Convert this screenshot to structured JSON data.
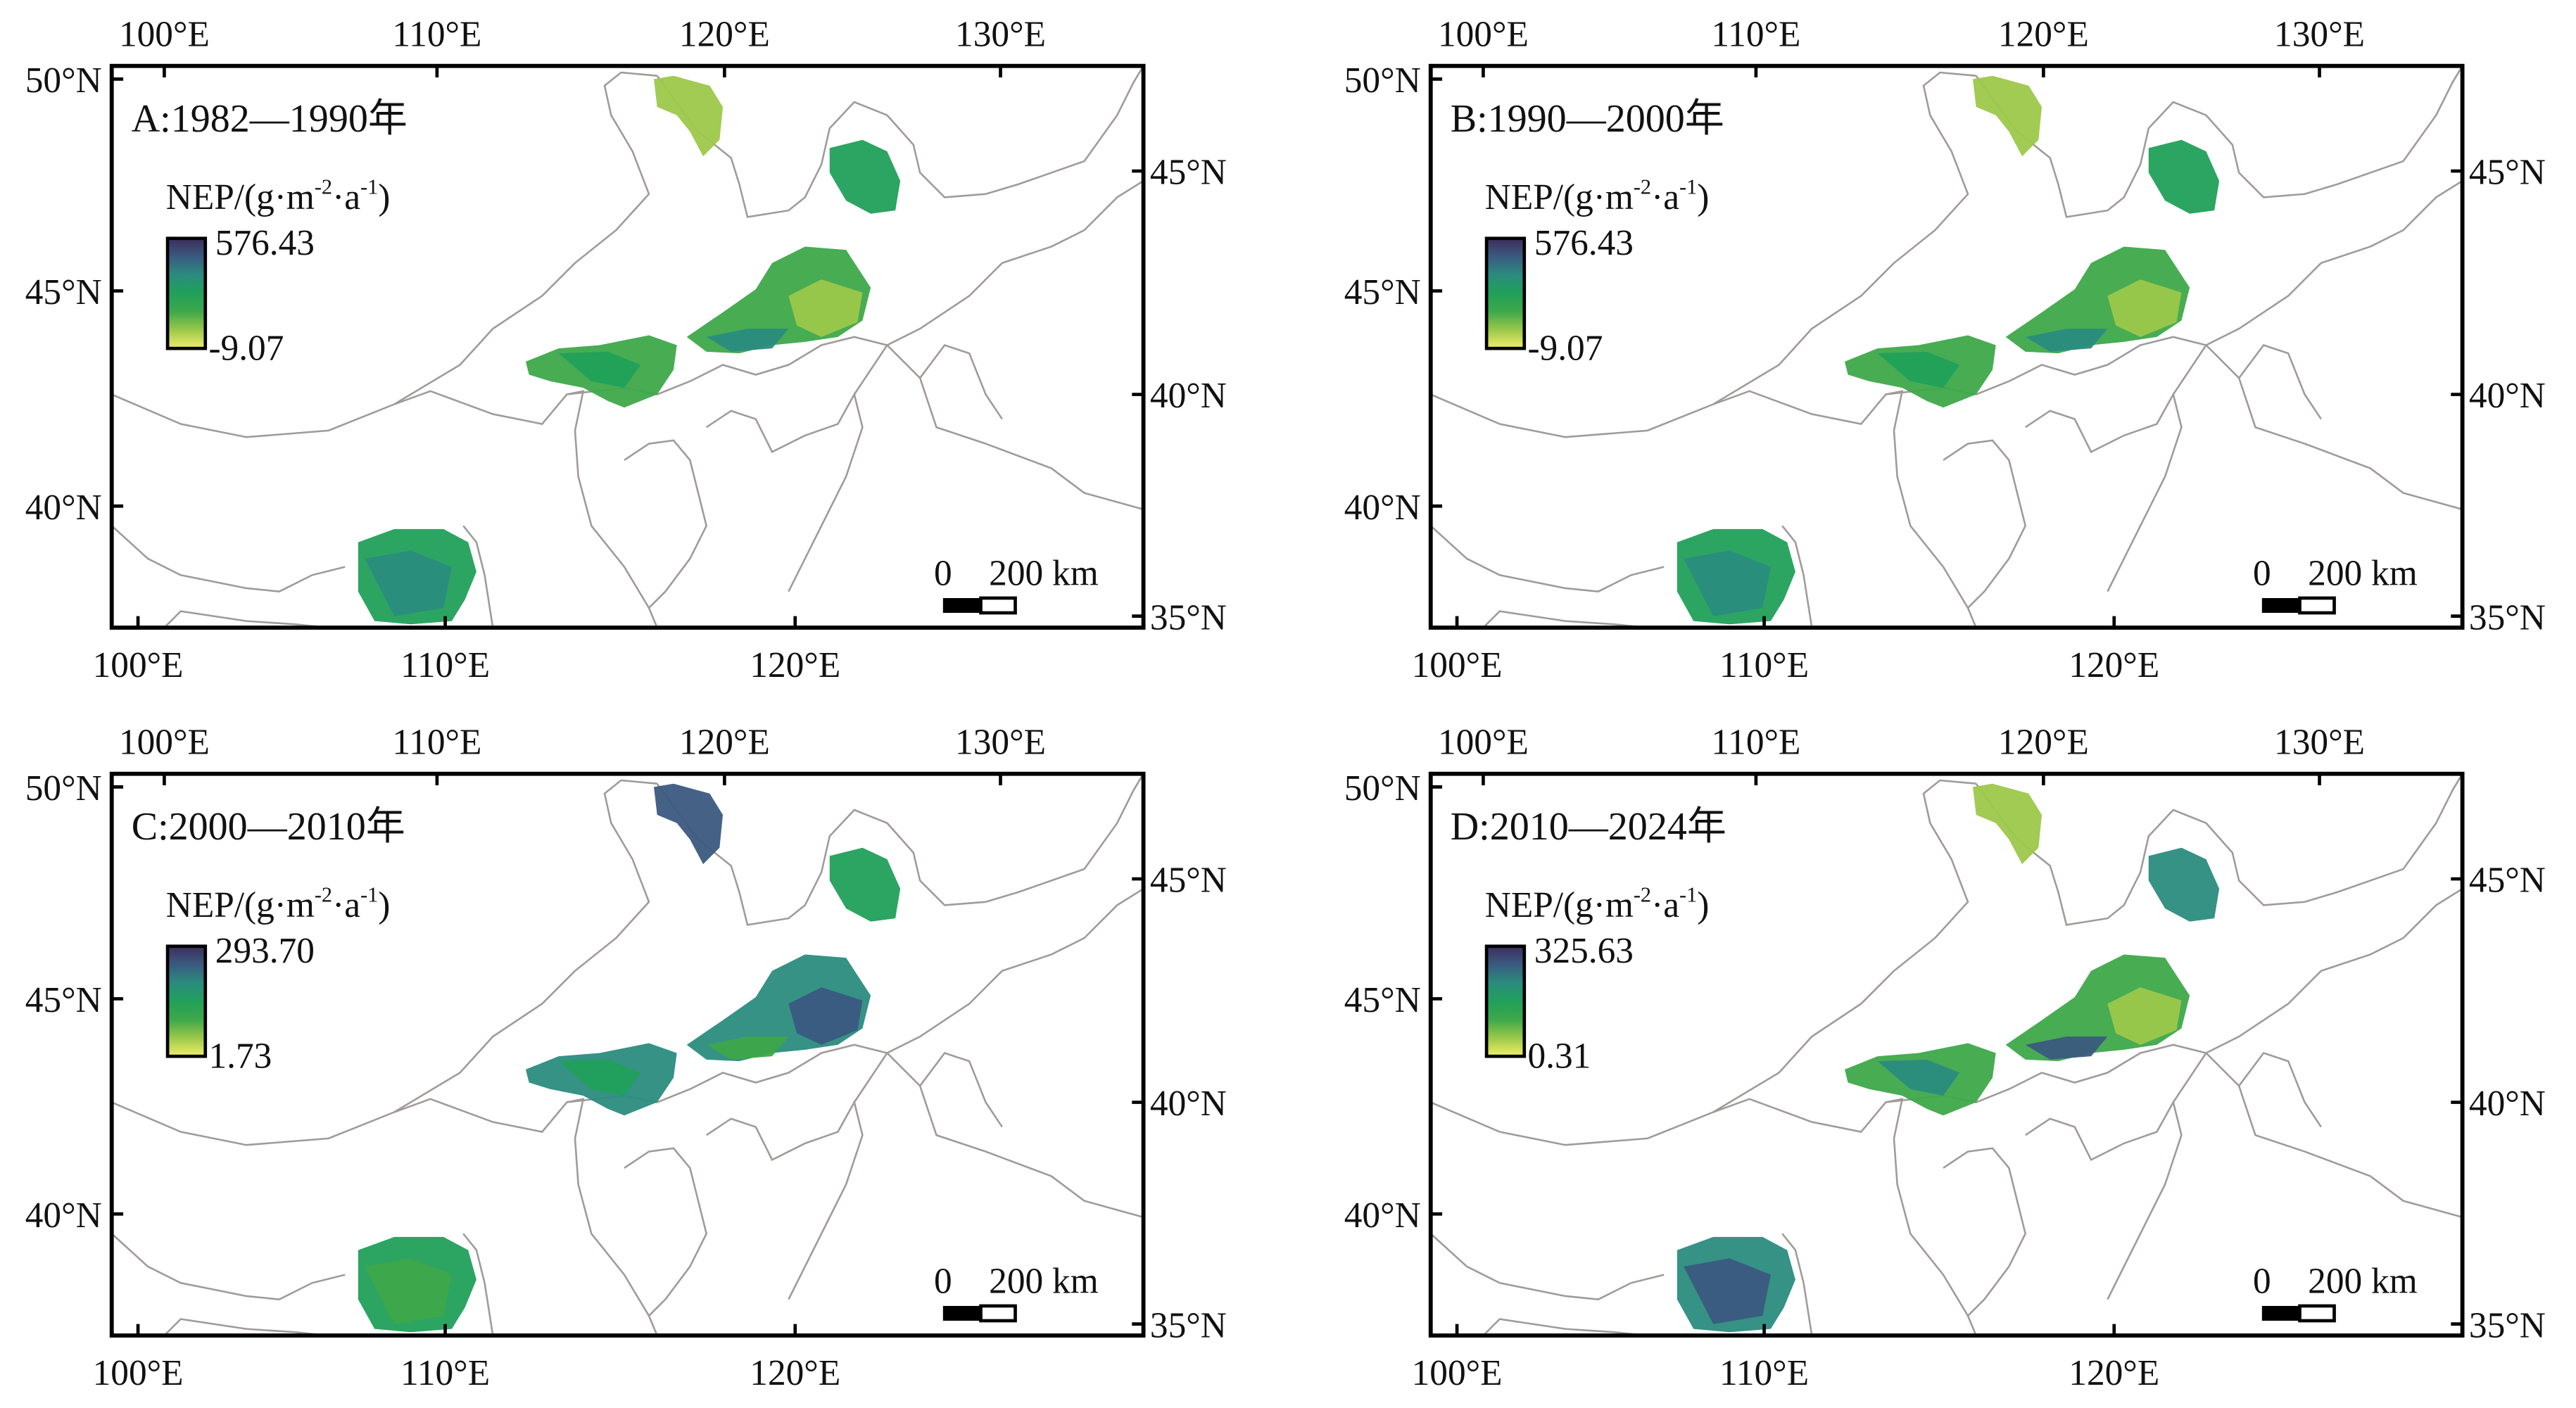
{
  "panels": [
    {
      "label": "A:1982—1990年",
      "legend_max": "576.43",
      "legend_min": "-9.07",
      "palette": "early"
    },
    {
      "label": "B:1990—2000年",
      "legend_max": "576.43",
      "legend_min": "-9.07",
      "palette": "early"
    },
    {
      "label": "C:2000—2010年",
      "legend_max": "293.70",
      "legend_min": "1.73",
      "palette": "late-dark"
    },
    {
      "label": "D:2010—2024年",
      "legend_max": "325.63",
      "legend_min": "0.31",
      "palette": "late"
    }
  ],
  "legend_title": {
    "base": "NEP/(g·m",
    "sup1": "-2",
    "mid": "·a",
    "sup2": "-1",
    "end": ")"
  },
  "axes": {
    "top_lon": [
      "100°E",
      "110°E",
      "120°E",
      "130°E"
    ],
    "bottom_lon": [
      "100°E",
      "110°E",
      "120°E"
    ],
    "left_lat": [
      "50°N",
      "45°N",
      "40°N"
    ],
    "right_lat": [
      "45°N",
      "40°N",
      "35°N"
    ]
  },
  "scale_bar": {
    "zero": "0",
    "label": "200 km"
  },
  "colormap": [
    "#f2ee6a",
    "#9cc84a",
    "#3ea84a",
    "#21a05a",
    "#2a8c7e",
    "#3b5a80",
    "#3d2d5c"
  ],
  "boundary_color": "#a09a9a"
}
